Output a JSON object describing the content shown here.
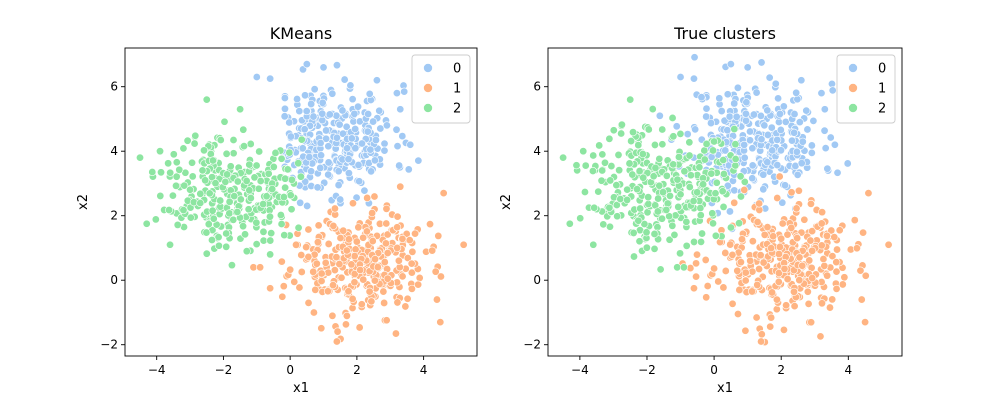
{
  "colors": {
    "0": "#a1c9f4",
    "1": "#ffb482",
    "2": "#8de5a1"
  },
  "chart_data": [
    {
      "type": "scatter",
      "title": "KMeans",
      "xlabel": "x1",
      "ylabel": "x2",
      "xlim": [
        -4.95,
        5.6
      ],
      "ylim": [
        -2.35,
        7.2
      ],
      "xticks": [
        -4,
        -2,
        0,
        2,
        4
      ],
      "yticks": [
        -2,
        0,
        2,
        4,
        6
      ],
      "grid": false,
      "legend": {
        "placement": "top-right",
        "entries": [
          "0",
          "1",
          "2"
        ]
      },
      "series": [
        {
          "name": "0",
          "color": "#a1c9f4",
          "generator": {
            "kind": "gaussian-sample",
            "seed": 11,
            "n": 310,
            "center": [
              1.2,
              4.35
            ],
            "spread": [
              0.95,
              0.85
            ],
            "clip": {
              "x_min": -0.25,
              "y_min": 2.1,
              "left_of_boundary_exclude": true
            }
          },
          "extra_points": [
            [
              -1.0,
              6.3
            ],
            [
              -0.6,
              6.25
            ],
            [
              0.5,
              6.7
            ],
            [
              1.0,
              6.6
            ],
            [
              2.6,
              6.2
            ],
            [
              3.3,
              5.3
            ],
            [
              3.6,
              4.2
            ],
            [
              2.9,
              4.8
            ],
            [
              3.2,
              5.8
            ],
            [
              1.5,
              2.5
            ],
            [
              0.3,
              2.4
            ]
          ]
        },
        {
          "name": "1",
          "color": "#ffb482",
          "generator": {
            "kind": "gaussian-sample",
            "seed": 23,
            "n": 330,
            "center": [
              2.0,
              0.55
            ],
            "spread": [
              1.0,
              0.8
            ],
            "clip": {
              "x_min": -0.5,
              "y_max": 2.65
            }
          },
          "extra_points": [
            [
              4.6,
              2.7
            ],
            [
              5.2,
              1.1
            ],
            [
              4.5,
              -1.3
            ],
            [
              1.4,
              -1.9
            ],
            [
              -0.6,
              -0.25
            ],
            [
              -1.1,
              0.4
            ],
            [
              -0.9,
              0.4
            ],
            [
              3.3,
              2.9
            ],
            [
              4.4,
              -0.6
            ]
          ]
        },
        {
          "name": "2",
          "color": "#8de5a1",
          "generator": {
            "kind": "gaussian-sample",
            "seed": 37,
            "n": 300,
            "center": [
              -1.75,
              2.85
            ],
            "spread": [
              1.0,
              0.85
            ],
            "clip": {
              "x_max": 0.35
            }
          },
          "extra_points": [
            [
              -4.5,
              3.8
            ],
            [
              -4.3,
              1.75
            ],
            [
              -3.6,
              1.1
            ],
            [
              -2.5,
              5.6
            ],
            [
              -1.5,
              5.3
            ],
            [
              -1.3,
              0.9
            ],
            [
              -0.8,
              1.5
            ],
            [
              -3.9,
              4.0
            ],
            [
              -0.6,
              0.8
            ]
          ]
        }
      ]
    },
    {
      "type": "scatter",
      "title": "True clusters",
      "xlabel": "x1",
      "ylabel": "x2",
      "xlim": [
        -4.95,
        5.6
      ],
      "ylim": [
        -2.35,
        7.2
      ],
      "xticks": [
        -4,
        -2,
        0,
        2,
        4
      ],
      "yticks": [
        -2,
        0,
        2,
        4,
        6
      ],
      "grid": false,
      "legend": {
        "placement": "top-right",
        "entries": [
          "0",
          "1",
          "2"
        ]
      },
      "series": [
        {
          "name": "0",
          "color": "#a1c9f4",
          "generator": {
            "kind": "gaussian-sample",
            "seed": 11,
            "n": 330,
            "center": [
              1.2,
              4.3
            ],
            "spread": [
              1.0,
              0.9
            ]
          },
          "extra_points": [
            [
              -1.0,
              6.3
            ],
            [
              -0.6,
              6.25
            ],
            [
              0.5,
              6.7
            ],
            [
              1.0,
              6.6
            ],
            [
              2.6,
              6.2
            ],
            [
              3.3,
              5.3
            ],
            [
              3.6,
              4.2
            ],
            [
              3.2,
              5.8
            ]
          ]
        },
        {
          "name": "1",
          "color": "#ffb482",
          "generator": {
            "kind": "gaussian-sample",
            "seed": 23,
            "n": 330,
            "center": [
              2.0,
              0.6
            ],
            "spread": [
              1.0,
              0.85
            ]
          },
          "extra_points": [
            [
              4.6,
              2.7
            ],
            [
              5.2,
              1.1
            ],
            [
              4.5,
              -1.3
            ],
            [
              1.4,
              -1.9
            ],
            [
              -0.6,
              -0.25
            ],
            [
              4.4,
              -0.6
            ],
            [
              0.9,
              2.8
            ],
            [
              0.6,
              2.4
            ]
          ]
        },
        {
          "name": "2",
          "color": "#8de5a1",
          "generator": {
            "kind": "gaussian-sample",
            "seed": 37,
            "n": 320,
            "center": [
              -1.6,
              3.0
            ],
            "spread": [
              1.05,
              0.95
            ]
          },
          "extra_points": [
            [
              -4.5,
              3.8
            ],
            [
              -4.3,
              1.75
            ],
            [
              -3.6,
              1.1
            ],
            [
              -2.5,
              5.6
            ],
            [
              -1.1,
              0.4
            ],
            [
              -0.9,
              0.4
            ],
            [
              -3.9,
              4.0
            ],
            [
              0.0,
              4.3
            ]
          ]
        }
      ]
    }
  ]
}
